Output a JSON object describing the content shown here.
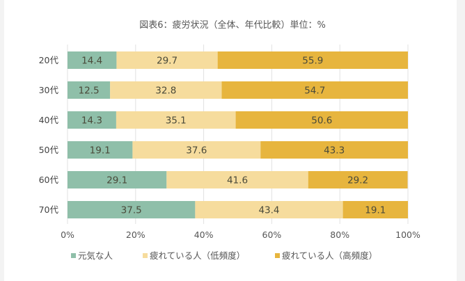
{
  "chart_data": {
    "type": "bar",
    "orientation": "horizontal",
    "stacked": "percent",
    "title": "図表6：疲労状況（全体、年代比較）単位：%",
    "categories": [
      "20代",
      "30代",
      "40代",
      "50代",
      "60代",
      "70代"
    ],
    "series": [
      {
        "name": "元気な人",
        "color": "#8fbfa9",
        "values": [
          14.4,
          12.5,
          14.3,
          19.1,
          29.1,
          37.5
        ]
      },
      {
        "name": "疲れている人（低頻度）",
        "color": "#f6dc9d",
        "values": [
          29.7,
          32.8,
          35.1,
          37.6,
          41.6,
          43.4
        ]
      },
      {
        "name": "疲れている人（高頻度）",
        "color": "#e7b53e",
        "values": [
          55.9,
          54.7,
          50.6,
          43.3,
          29.2,
          19.1
        ]
      }
    ],
    "xlim": [
      0,
      100
    ],
    "xticks": [
      "0%",
      "20%",
      "40%",
      "60%",
      "80%",
      "100%"
    ],
    "grid": true,
    "legend": "bottom"
  }
}
